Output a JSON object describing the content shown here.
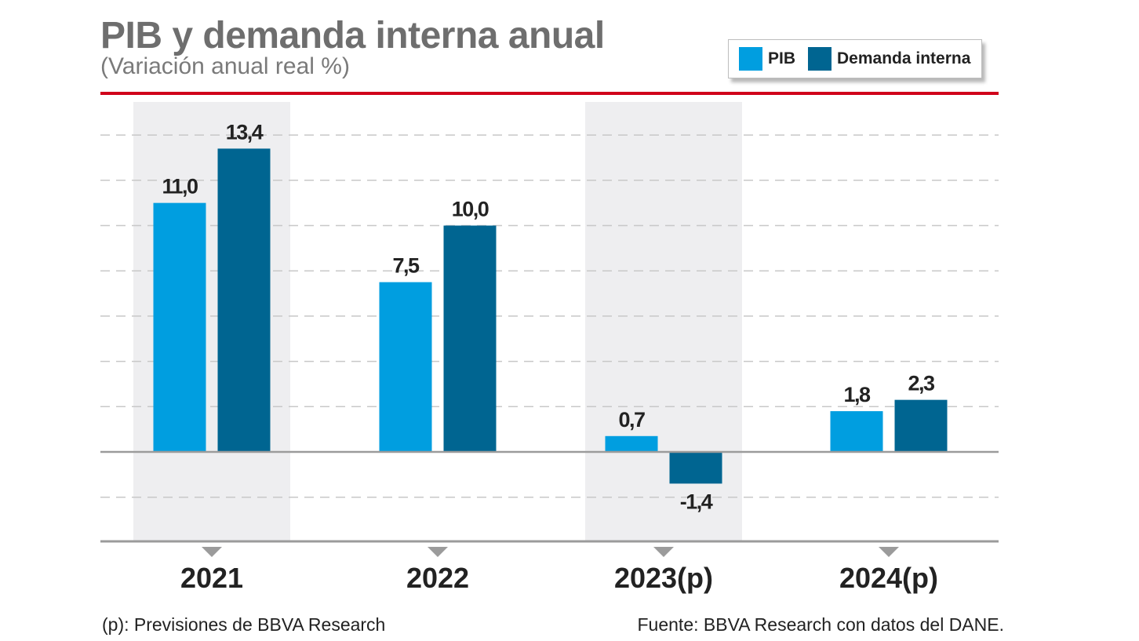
{
  "chart_data": {
    "type": "bar",
    "title": "PIB y demanda interna anual",
    "subtitle": "(Variación anual real %)",
    "categories": [
      "2021",
      "2022",
      "2023(p)",
      "2024(p)"
    ],
    "series": [
      {
        "name": "PIB",
        "color": "#009ee0",
        "values": [
          11.0,
          7.5,
          0.7,
          1.8
        ],
        "labels": [
          "11,0",
          "7,5",
          "0,7",
          "1,8"
        ]
      },
      {
        "name": "Demanda interna",
        "color": "#006591",
        "values": [
          13.4,
          10.0,
          -1.4,
          2.3
        ],
        "labels": [
          "13,4",
          "10,0",
          "-1,4",
          "2,3"
        ]
      }
    ],
    "ylim": [
      -4,
      14
    ],
    "gridlines": [
      -2,
      2,
      4,
      6,
      8,
      10,
      12,
      14
    ],
    "highlighted_categories": [
      "2021",
      "2023(p)"
    ],
    "legend_position": "top-right",
    "footnote": "(p): Previsiones de BBVA Research",
    "source": "Fuente: BBVA Research con datos del DANE."
  },
  "colors": {
    "accent_rule": "#d0021b",
    "grid": "#c8c8c8",
    "axis": "#9b9b9b",
    "highlight_band": "#eeeef0",
    "text": "#222222"
  }
}
